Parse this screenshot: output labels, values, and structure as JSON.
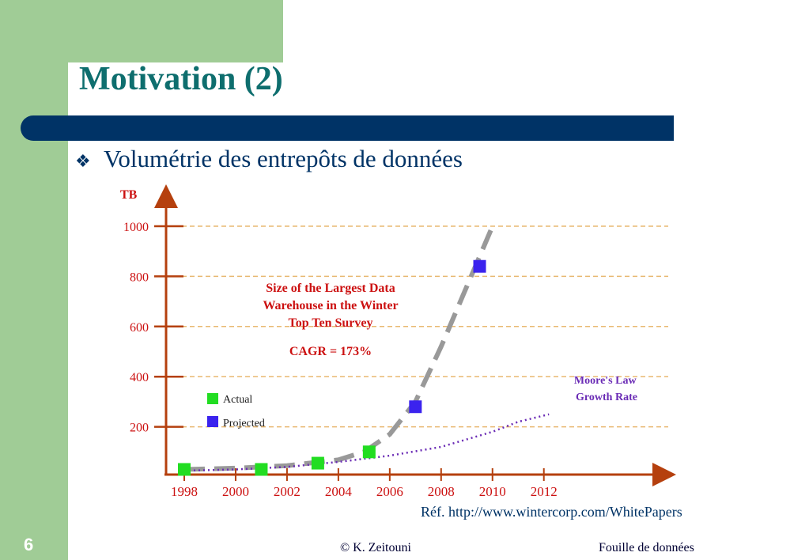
{
  "slide": {
    "title": "Motivation (2)",
    "bullet": "Volumétrie des entrepôts de données",
    "reference": "Réf. http://www.wintercorp.com/WhitePapers",
    "page_number": "6",
    "footer_author": "© K. Zeitouni",
    "footer_course": "Fouille de données"
  },
  "colors": {
    "accent": "#003366",
    "title": "#0e6e6e",
    "sidebar": "#a0cc96",
    "axis": "#b5400e",
    "actual": "#22dd22",
    "projected": "#3b23ee",
    "moore": "#6a2bb5",
    "chart_text": "#cc1111"
  },
  "chart_data": {
    "type": "scatter",
    "ylabel": "TB",
    "xlabel": "",
    "xlim": [
      1997.5,
      2012.5
    ],
    "ylim": [
      0,
      1000
    ],
    "x_ticks": [
      1998,
      2000,
      2002,
      2004,
      2006,
      2008,
      2010,
      2012
    ],
    "y_ticks": [
      200,
      400,
      600,
      800,
      1000
    ],
    "grid": "horizontal dashed",
    "annotation_title": [
      "Size of the Largest Data",
      "Warehouse in the Winter",
      "Top Ten Survey"
    ],
    "annotation_cagr": "CAGR = 173%",
    "legend_position": "left",
    "series": [
      {
        "name": "Actual",
        "marker": "square",
        "points": [
          [
            1998,
            30
          ],
          [
            2001,
            30
          ],
          [
            2003.2,
            55
          ],
          [
            2005.2,
            100
          ]
        ]
      },
      {
        "name": "Projected",
        "marker": "square",
        "points": [
          [
            2007,
            280
          ],
          [
            2009.5,
            840
          ]
        ]
      },
      {
        "name": "CAGR trend",
        "style": "dashed",
        "points": [
          [
            1998,
            30
          ],
          [
            2000,
            35
          ],
          [
            2002,
            45
          ],
          [
            2004,
            68
          ],
          [
            2005,
            100
          ],
          [
            2006,
            170
          ],
          [
            2007,
            300
          ],
          [
            2008,
            520
          ],
          [
            2009,
            760
          ],
          [
            2010,
            1000
          ]
        ]
      },
      {
        "name": "Moore's Law Growth Rate",
        "style": "dotted",
        "points": [
          [
            1998,
            25
          ],
          [
            2000,
            30
          ],
          [
            2002,
            40
          ],
          [
            2004,
            60
          ],
          [
            2006,
            85
          ],
          [
            2008,
            120
          ],
          [
            2010,
            180
          ],
          [
            2011,
            220
          ],
          [
            2012.2,
            250
          ]
        ]
      }
    ]
  }
}
